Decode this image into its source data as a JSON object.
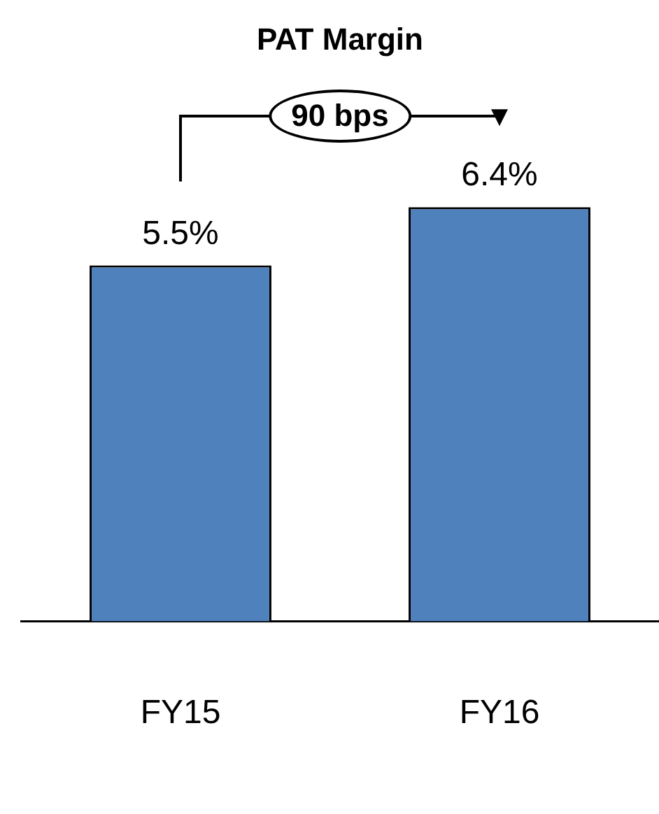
{
  "chart_data": {
    "type": "bar",
    "title": "PAT Margin",
    "categories": [
      "FY15",
      "FY16"
    ],
    "values": [
      5.5,
      6.4
    ],
    "value_labels": [
      "5.5%",
      "6.4%"
    ],
    "color": "#4f81bd",
    "annotations": [
      "90 bps"
    ]
  }
}
